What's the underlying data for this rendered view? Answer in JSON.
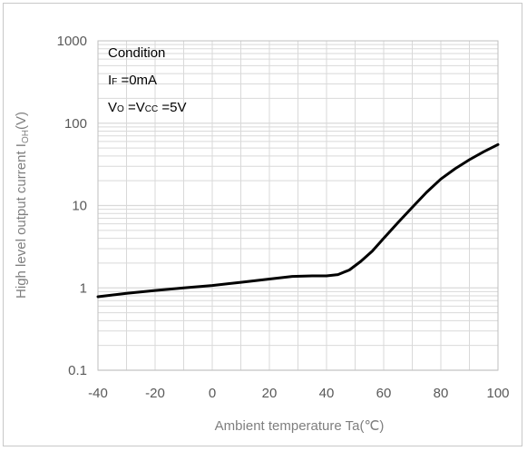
{
  "chart_data": {
    "type": "line",
    "xlabel": "Ambient temperature Ta(℃)",
    "ylabel": "High level output current I₀ₕ(V)",
    "ylabel_parts": {
      "main": "High level output current I",
      "sub": "OH",
      "unit": "(V)"
    },
    "xlim": [
      -40,
      100
    ],
    "ylim": [
      0.1,
      1000
    ],
    "y_scale": "log",
    "x_ticks": [
      "-40",
      "-20",
      "0",
      "20",
      "40",
      "60",
      "80",
      "100"
    ],
    "y_ticks": [
      "0.1",
      "1",
      "10",
      "100",
      "1000"
    ],
    "grid": true,
    "series": [
      {
        "x": [
          -40,
          -30,
          -20,
          -10,
          0,
          10,
          20,
          28,
          35,
          40,
          44,
          48,
          52,
          56,
          60,
          65,
          70,
          75,
          80,
          85,
          90,
          95,
          100
        ],
        "y": [
          0.78,
          0.86,
          0.93,
          1.0,
          1.07,
          1.17,
          1.28,
          1.38,
          1.4,
          1.4,
          1.45,
          1.65,
          2.1,
          2.8,
          4.0,
          6.2,
          9.5,
          14.5,
          21.0,
          28.0,
          36.0,
          45.0,
          55.0
        ]
      }
    ],
    "annotations": {
      "condition": "Condition",
      "if_main": "I",
      "if_sub": "F",
      "if_rest": " =0mA",
      "vo_main": "V",
      "vo_sub": "O",
      "vo_mid": " =V",
      "vcc_sub": "CC",
      "vo_rest": " =5V"
    },
    "colors": {
      "line": "#000000",
      "grid": "#d9d9d9",
      "plot_border": "#bfbfbf"
    }
  }
}
